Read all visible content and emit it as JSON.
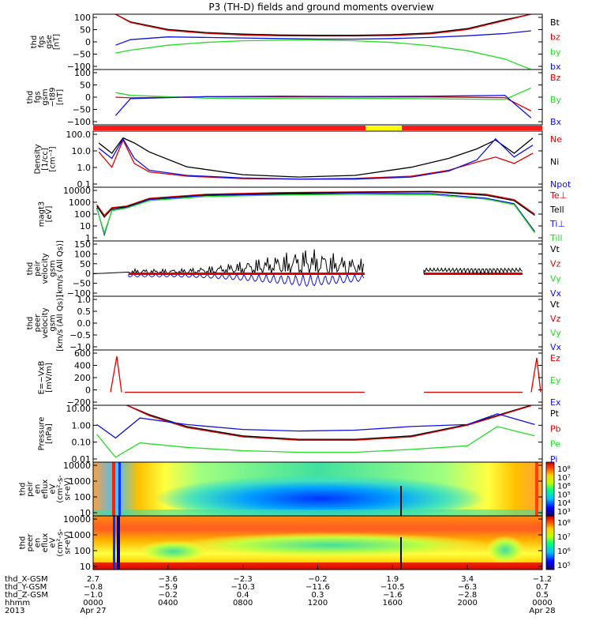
{
  "title": "P3 (TH-D) fields and ground moments overview",
  "colors": {
    "black": "#000000",
    "red": "#e00000",
    "green": "#22dd22",
    "blue": "#1010e0",
    "bar_red": "#ff1a1a",
    "bar_yellow": "#ffff00"
  },
  "chart_data": {
    "type": "line",
    "time_range": [
      "2013-04-27 00:00",
      "2013-04-28 00:00"
    ],
    "panels": [
      {
        "id": "fgs_gse",
        "ylabel": [
          "thd",
          "fgs",
          "gse",
          "[nT]"
        ],
        "yticks": [
          "100",
          "50",
          "0",
          "−50",
          "−100"
        ],
        "ylim": [
          -100,
          100
        ],
        "series": [
          {
            "name": "Bt",
            "color": "black",
            "x": [
              1.2,
              2,
              4,
              6,
              8,
              10,
              12,
              14,
              16,
              18,
              20,
              22,
              23.4
            ],
            "y": [
              100,
              72,
              45,
              34,
              28,
              25,
              24,
              24,
              26,
              32,
              48,
              80,
              100
            ]
          },
          {
            "name": "bz",
            "color": "red",
            "x": [
              1.2,
              2,
              4,
              6,
              8,
              10,
              12,
              14,
              16,
              18,
              20,
              22,
              23.4
            ],
            "y": [
              100,
              70,
              42,
              31,
              25,
              22,
              21,
              21,
              23,
              29,
              45,
              77,
              100
            ]
          },
          {
            "name": "by",
            "color": "green",
            "x": [
              1.2,
              2,
              4,
              6,
              8,
              10,
              12,
              14,
              16,
              18,
              20,
              22,
              23.4
            ],
            "y": [
              -40,
              -30,
              -12,
              -2,
              4,
              6,
              6,
              4,
              -2,
              -14,
              -32,
              -62,
              -100
            ]
          },
          {
            "name": "bx",
            "color": "blue",
            "x": [
              1.2,
              2,
              4,
              6,
              8,
              10,
              12,
              14,
              16,
              18,
              20,
              22,
              23.4
            ],
            "y": [
              -12,
              8,
              18,
              16,
              14,
              12,
              10,
              10,
              12,
              16,
              22,
              30,
              40
            ]
          }
        ]
      },
      {
        "id": "fgs_gsm",
        "ylabel": [
          "thd",
          "fgs",
          "gsm",
          "−t89",
          "[nT]"
        ],
        "yticks": [
          "100",
          "50",
          "0",
          "−50",
          "−100"
        ],
        "ylim": [
          -120,
          120
        ],
        "series": [
          {
            "name": "Bz",
            "color": "red",
            "x": [
              1.2,
              2,
              6,
              10,
              14,
              18,
              22,
              23.4
            ],
            "y": [
              0,
              -3,
              2,
              1,
              1,
              1,
              -2,
              -60
            ]
          },
          {
            "name": "By",
            "color": "green",
            "x": [
              1.2,
              2,
              6,
              10,
              14,
              18,
              22,
              23.4
            ],
            "y": [
              20,
              8,
              -4,
              -6,
              -5,
              -7,
              -10,
              40
            ]
          },
          {
            "name": "Bx",
            "color": "blue",
            "x": [
              1.2,
              2,
              6,
              10,
              14,
              18,
              22,
              23.4
            ],
            "y": [
              -80,
              -6,
              2,
              4,
              3,
              4,
              8,
              -90
            ]
          }
        ]
      },
      {
        "id": "density",
        "ylabel": [
          "Density",
          "[1/cc]",
          "[cm⁻³]"
        ],
        "yticks": [
          "100.0",
          "10.0",
          "1.0",
          "0.1"
        ],
        "ylim": [
          0.1,
          200
        ],
        "yscale": "log",
        "series": [
          {
            "name": "Ne",
            "color": "red",
            "x": [
              0.3,
              1,
              1.6,
              2.2,
              3,
              5,
              8,
              11,
              14,
              17,
              19,
              20.5,
              21.5,
              22.5,
              23.5
            ],
            "y": [
              12,
              1.5,
              60,
              2.5,
              0.8,
              0.45,
              0.32,
              0.3,
              0.33,
              0.45,
              1.0,
              3.0,
              6.0,
              2.5,
              10
            ]
          },
          {
            "name": "Ni",
            "color": "black",
            "x": [
              0.3,
              1,
              1.6,
              2.2,
              3,
              5,
              8,
              11,
              14,
              17,
              19,
              20.5,
              21.5,
              22.5,
              23.5
            ],
            "y": [
              40,
              10,
              80,
              40,
              12,
              1.6,
              0.55,
              0.4,
              0.5,
              1.5,
              5,
              18,
              60,
              10,
              80
            ]
          },
          {
            "name": "Npot",
            "color": "blue",
            "x": [
              0.3,
              1,
              1.6,
              2.2,
              3,
              5,
              8,
              11,
              14,
              17,
              19,
              20.5,
              21.5,
              22.5,
              23.5
            ],
            "y": [
              20,
              5,
              70,
              5,
              1.0,
              0.5,
              0.35,
              0.3,
              0.3,
              0.4,
              0.9,
              4,
              70,
              6,
              30
            ]
          }
        ]
      },
      {
        "id": "temperature",
        "ylabel": [
          "magt3",
          "[eV]"
        ],
        "yticks": [
          "10000",
          "1000",
          "100",
          "10",
          "1"
        ],
        "ylim": [
          1,
          10000
        ],
        "yscale": "log",
        "series": [
          {
            "name": "Te⊥",
            "color": "red",
            "x": [
              0.2,
              0.6,
              1.0,
              1.8,
              3,
              6,
              10,
              14,
              18,
              21,
              22.5,
              23.6
            ],
            "y": [
              500,
              80,
              300,
              400,
              1500,
              3000,
              4000,
              4500,
              5000,
              3000,
              1200,
              100
            ]
          },
          {
            "name": "Tell",
            "color": "black",
            "x": [
              0.2,
              0.6,
              1.0,
              1.8,
              3,
              6,
              10,
              14,
              18,
              21,
              22.5,
              23.6
            ],
            "y": [
              400,
              60,
              250,
              350,
              1300,
              2600,
              3500,
              4200,
              4600,
              2500,
              1000,
              80
            ]
          },
          {
            "name": "Ti⊥",
            "color": "blue",
            "x": [
              0.2,
              0.6,
              1.0,
              1.8,
              3,
              6,
              10,
              14,
              18,
              21,
              22.5,
              23.6
            ],
            "y": [
              300,
              3,
              200,
              300,
              1200,
              2400,
              3000,
              3500,
              3400,
              1500,
              600,
              5
            ]
          },
          {
            "name": "Till",
            "color": "green",
            "x": [
              0.2,
              0.6,
              1.0,
              1.8,
              3,
              6,
              10,
              14,
              18,
              21,
              22.5,
              23.6
            ],
            "y": [
              250,
              4,
              180,
              280,
              1000,
              2000,
              2600,
              3000,
              2800,
              1300,
              500,
              4
            ]
          }
        ]
      },
      {
        "id": "ion_velocity",
        "ylabel": [
          "thd",
          "peir",
          "velocity",
          "gsm",
          "[km/s (All Qs)]"
        ],
        "yticks": [
          "150",
          "100",
          "50",
          "0",
          "−50",
          "−100"
        ],
        "ylim": [
          -110,
          160
        ],
        "series": [
          {
            "name": "Vt",
            "color": "black"
          },
          {
            "name": "Vz",
            "color": "red"
          },
          {
            "name": "Vy",
            "color": "green"
          },
          {
            "name": "Vx",
            "color": "blue"
          }
        ]
      },
      {
        "id": "electron_velocity",
        "ylabel": [
          "thd",
          "peer",
          "velocity",
          "gsm",
          "[km/s (All Qs)]"
        ],
        "yticks": [
          "1.0",
          "0.5",
          "0.0",
          "−0.5",
          "−1.0"
        ],
        "ylim": [
          -1,
          1
        ],
        "series": [
          {
            "name": "Vt",
            "color": "black"
          },
          {
            "name": "Vz",
            "color": "red"
          },
          {
            "name": "Vy",
            "color": "green"
          },
          {
            "name": "Vx",
            "color": "blue"
          }
        ]
      },
      {
        "id": "efield",
        "ylabel": [
          "E=−VxB",
          "[mV/m]"
        ],
        "yticks": [
          "600",
          "400",
          "200",
          "0",
          "−200"
        ],
        "ylim": [
          -200,
          650
        ],
        "series": [
          {
            "name": "Ez",
            "color": "red"
          },
          {
            "name": "Ey",
            "color": "green"
          },
          {
            "name": "Ex",
            "color": "blue"
          }
        ]
      },
      {
        "id": "pressure",
        "ylabel": [
          "Pressure",
          "[nPa]"
        ],
        "yticks": [
          "10.00",
          "1.00",
          "0.10",
          "0.01"
        ],
        "ylim": [
          0.01,
          30
        ],
        "yscale": "log",
        "series": [
          {
            "name": "Pt",
            "color": "black",
            "x": [
              1.8,
              3,
              5,
              8,
              11,
              14,
              17,
              20,
              22,
              23.4
            ],
            "y": [
              30,
              8,
              1.5,
              0.4,
              0.25,
              0.25,
              0.4,
              2,
              10,
              30
            ]
          },
          {
            "name": "Pb",
            "color": "red",
            "x": [
              1.8,
              3,
              5,
              8,
              11,
              14,
              17,
              20,
              22,
              23.4
            ],
            "y": [
              30,
              7,
              1.3,
              0.35,
              0.22,
              0.22,
              0.35,
              1.8,
              9,
              28
            ]
          },
          {
            "name": "Pe",
            "color": "green",
            "x": [
              0.2,
              1.2,
              2.5,
              5,
              8,
              11,
              14,
              17,
              20,
              21.6,
              23.6
            ],
            "y": [
              0.5,
              0.02,
              0.15,
              0.08,
              0.05,
              0.04,
              0.04,
              0.06,
              0.1,
              1.5,
              0.4
            ]
          },
          {
            "name": "Pi",
            "color": "blue",
            "x": [
              0.2,
              1.2,
              2.5,
              5,
              8,
              11,
              14,
              17,
              20,
              21.6,
              23.6
            ],
            "y": [
              2,
              0.3,
              5,
              2,
              1,
              0.8,
              0.9,
              1.5,
              2,
              9,
              2
            ]
          }
        ]
      },
      {
        "id": "ion_spectrogram",
        "ylabel": [
          "thd",
          "peir",
          "en",
          "eflux",
          "eV",
          "(cm²-s-",
          "sr-eV)"
        ],
        "yticks": [
          "10000",
          "1000",
          "100",
          "10"
        ],
        "colorbar_ticks": [
          "10⁸",
          "10⁷",
          "10⁶",
          "10⁵",
          "10⁴",
          "10³"
        ]
      },
      {
        "id": "electron_spectrogram",
        "ylabel": [
          "thd",
          "peer",
          "en",
          "eflux",
          "eV",
          "(cm²-s-",
          "sr-eV)"
        ],
        "yticks": [
          "10000",
          "1000",
          "100",
          "10"
        ],
        "colorbar_ticks": [
          "10⁸",
          "10⁷",
          "10⁶",
          "10⁵"
        ]
      }
    ],
    "ephemeris": {
      "labels": [
        "thd_X-GSM",
        "thd_Y-GSM",
        "thd_Z-GSM",
        "hhmm",
        "2013"
      ],
      "columns": [
        {
          "values": [
            "2.7",
            "−0.8",
            "−1.0",
            "0000",
            "Apr 27"
          ]
        },
        {
          "values": [
            "−3.6",
            "−5.9",
            "−0.2",
            "0400",
            ""
          ]
        },
        {
          "values": [
            "−2.3",
            "−10.3",
            "0.4",
            "0800",
            ""
          ]
        },
        {
          "values": [
            "−0.2",
            "−11.6",
            "0.3",
            "1200",
            ""
          ]
        },
        {
          "values": [
            "1.9",
            "−10.5",
            "−1.6",
            "1600",
            ""
          ]
        },
        {
          "values": [
            "3.4",
            "−6.3",
            "−2.8",
            "2000",
            ""
          ]
        },
        {
          "values": [
            "−1.2",
            "0.7",
            "0.5",
            "0000",
            "Apr 28"
          ]
        }
      ]
    }
  }
}
